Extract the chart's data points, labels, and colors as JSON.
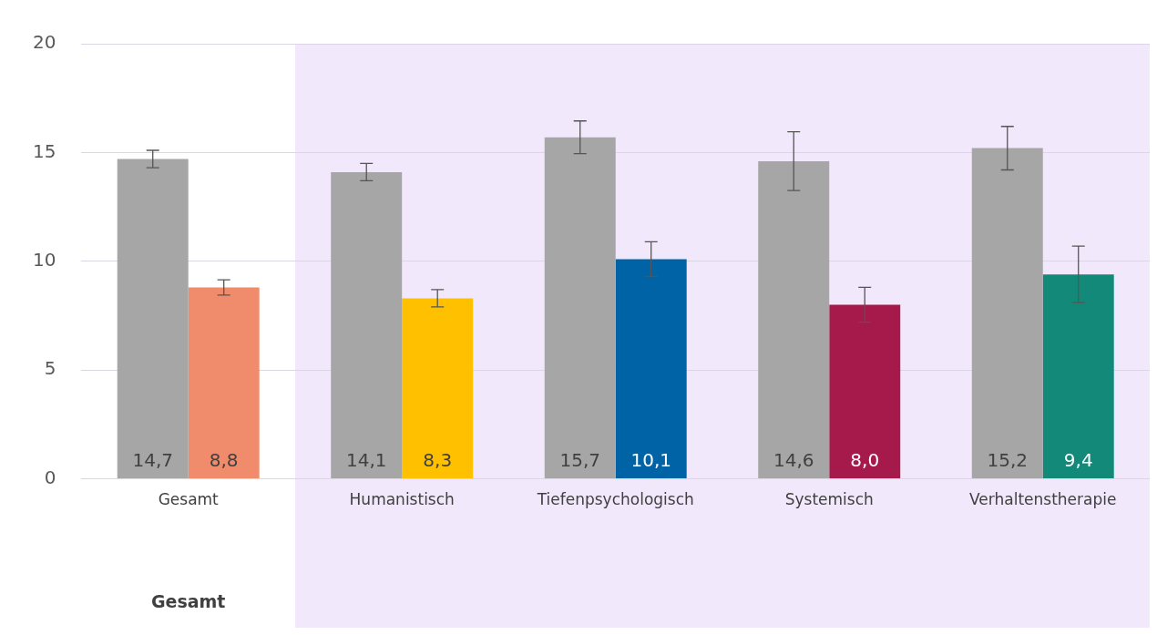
{
  "chart_data": {
    "type": "bar",
    "categories": [
      "Gesamt",
      "Humanistisch",
      "Tiefenpsychologisch",
      "Systemisch",
      "Verhaltenstherapie"
    ],
    "series": [
      {
        "color": "#a6a6a6",
        "values": [
          14.7,
          14.1,
          15.7,
          14.6,
          15.2
        ],
        "errors": [
          0.4,
          0.4,
          0.75,
          1.35,
          1.0
        ],
        "value_labels": [
          "14,7",
          "14,1",
          "15,7",
          "14,6",
          "15,2"
        ]
      },
      {
        "colors": [
          "#f08c6c",
          "#ffc000",
          "#0063a5",
          "#a51a4a",
          "#13897a"
        ],
        "values": [
          8.8,
          8.3,
          10.1,
          8.0,
          9.4
        ],
        "errors": [
          0.35,
          0.4,
          0.8,
          0.8,
          1.3
        ],
        "value_labels": [
          "8,8",
          "8,3",
          "10,1",
          "8,0",
          "9,4"
        ]
      }
    ],
    "ylim": [
      0,
      20
    ],
    "yticks": [
      0,
      5,
      10,
      15,
      20
    ],
    "grid": "y",
    "legend": false,
    "bands": [
      {
        "axis": "x",
        "from": "Humanistisch",
        "to": "Verhaltenstherapie",
        "color": "#f2e8fc"
      }
    ],
    "annotations": [
      "Gesamt"
    ]
  }
}
